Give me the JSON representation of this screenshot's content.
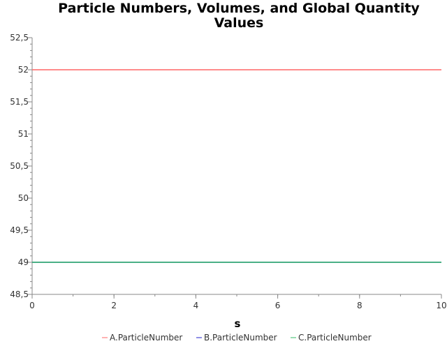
{
  "chart_data": {
    "type": "line",
    "title_lines": [
      "Particle Numbers, Volumes, and Global Quantity",
      "Values"
    ],
    "xlabel": "s",
    "ylabel": "",
    "xlim": [
      0,
      10
    ],
    "ylim": [
      48.5,
      52.5
    ],
    "x_ticks": [
      0,
      2,
      4,
      6,
      8,
      10
    ],
    "x_tick_labels": [
      "0",
      "2",
      "4",
      "6",
      "8",
      "10"
    ],
    "y_ticks": [
      48.5,
      49,
      49.5,
      50,
      50.5,
      51,
      51.5,
      52,
      52.5
    ],
    "y_tick_labels": [
      "48,5",
      "49",
      "49,5",
      "50",
      "50,5",
      "51",
      "51,5",
      "52",
      "52,5"
    ],
    "grid": false,
    "legend_position": "bottom",
    "series": [
      {
        "name": "A.ParticleNumber",
        "color": "#ff6666",
        "x": [
          0,
          10
        ],
        "y": [
          52,
          52
        ]
      },
      {
        "name": "B.ParticleNumber",
        "color": "#2222cc",
        "x": [
          0,
          10
        ],
        "y": [
          49,
          49
        ]
      },
      {
        "name": "C.ParticleNumber",
        "color": "#33bb66",
        "x": [
          0,
          10
        ],
        "y": [
          49,
          49
        ]
      }
    ]
  }
}
